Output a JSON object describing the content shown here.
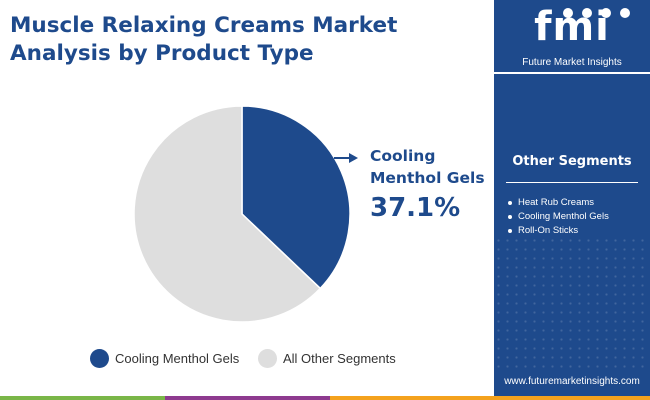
{
  "title": "Muscle Relaxing Creams Market Analysis by Product Type",
  "brand": {
    "logo_text": "fmi",
    "tagline": "Future Market Insights",
    "website": "www.futuremarketinsights.com",
    "primary_color": "#1e4a8c"
  },
  "sidebar": {
    "heading": "Other Segments",
    "items": [
      "Heat Rub Creams",
      "Cooling Menthol Gels",
      "Roll-On Sticks"
    ]
  },
  "callout": {
    "label": "Cooling Menthol Gels",
    "value": "37.1%"
  },
  "chart_data": {
    "type": "pie",
    "slices": [
      {
        "label": "Cooling Menthol Gels",
        "value": 37.1,
        "color": "#1e4a8c"
      },
      {
        "label": "All Other Segments",
        "value": 62.9,
        "color": "#dedede"
      }
    ],
    "legend": [
      "Cooling Menthol Gels",
      "All Other Segments"
    ],
    "legend_position": "bottom"
  },
  "bottom_bar_colors": [
    "#7ab648",
    "#8e3a8f",
    "#f4a21d"
  ]
}
